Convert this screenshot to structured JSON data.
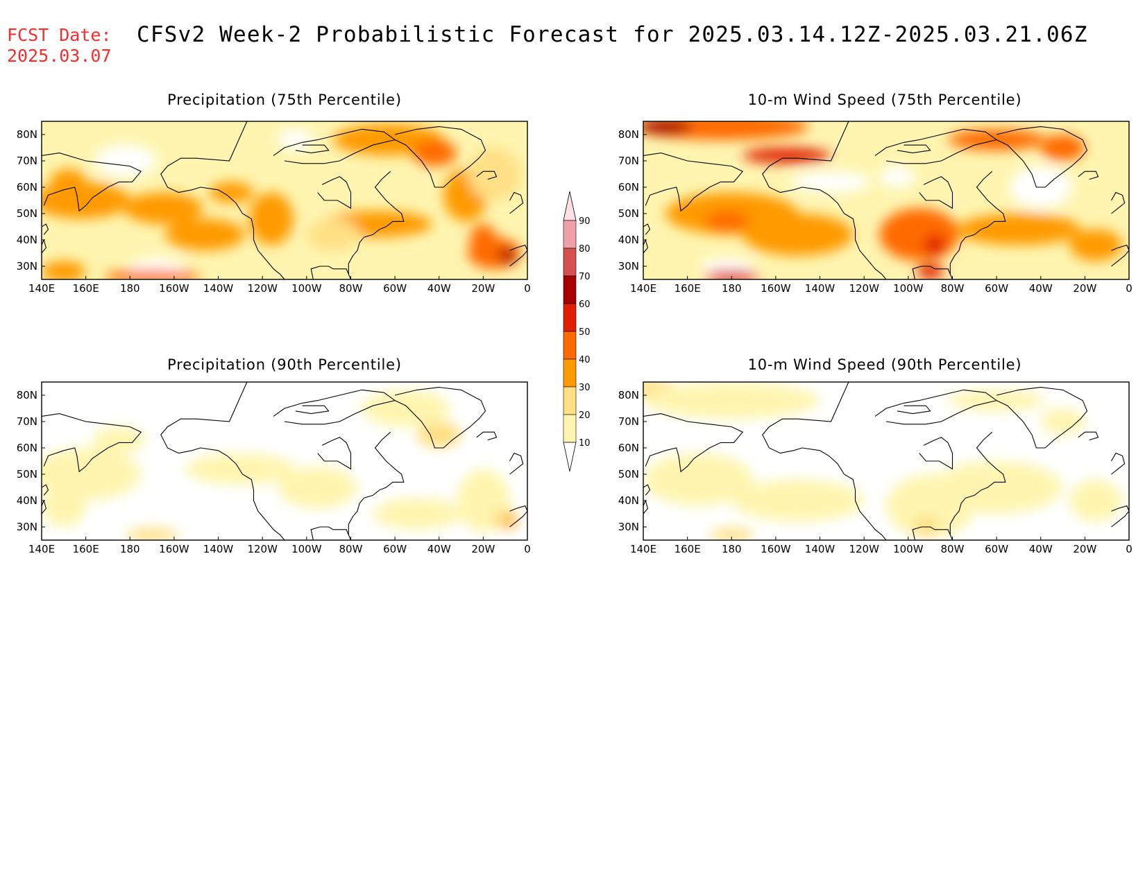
{
  "header": {
    "fcst_label": "FCST Date:",
    "fcst_date": "2025.03.07",
    "title": "CFSv2 Week-2 Probabilistic Forecast for 2025.03.14.12Z-2025.03.21.06Z",
    "fcst_color": "#ff2a2a"
  },
  "axes": {
    "lon_ticks": [
      "140E",
      "160E",
      "180",
      "160W",
      "140W",
      "120W",
      "100W",
      "80W",
      "60W",
      "40W",
      "20W",
      "0"
    ],
    "lat_ticks": [
      "80N",
      "70N",
      "60N",
      "50N",
      "40N",
      "30N"
    ],
    "lon_range": [
      140,
      360
    ],
    "lat_range": [
      25,
      85
    ]
  },
  "colorbar": {
    "levels": [
      "10",
      "20",
      "30",
      "40",
      "50",
      "60",
      "70",
      "80",
      "90"
    ],
    "colors": [
      "#fff5b0",
      "#ffe085",
      "#ff9a00",
      "#ff6a00",
      "#e02000",
      "#a80000",
      "#d65050",
      "#f0a0a8",
      "#fde0e6"
    ]
  },
  "chart_data": [
    {
      "type": "heatmap",
      "title": "Precipitation (75th Percentile)",
      "id": "p75",
      "blobs": [
        {
          "lon": 178,
          "lat": 70,
          "rlon": 14,
          "rlat": 6,
          "v": 5
        },
        {
          "lon": 152,
          "lat": 62,
          "rlon": 8,
          "rlat": 5,
          "v": 34
        },
        {
          "lon": 158,
          "lat": 55,
          "rlon": 22,
          "rlat": 7,
          "v": 36
        },
        {
          "lon": 195,
          "lat": 52,
          "rlon": 18,
          "rlat": 6,
          "v": 34
        },
        {
          "lon": 226,
          "lat": 58,
          "rlon": 10,
          "rlat": 4,
          "v": 36
        },
        {
          "lon": 244,
          "lat": 48,
          "rlon": 10,
          "rlat": 10,
          "v": 36
        },
        {
          "lon": 214,
          "lat": 42,
          "rlon": 18,
          "rlat": 6,
          "v": 33
        },
        {
          "lon": 150,
          "lat": 28,
          "rlon": 10,
          "rlat": 4,
          "v": 33
        },
        {
          "lon": 192,
          "lat": 30,
          "rlon": 12,
          "rlat": 3,
          "v": 5
        },
        {
          "lon": 190,
          "lat": 26,
          "rlon": 22,
          "rlat": 2.5,
          "v": 44
        },
        {
          "lon": 255,
          "lat": 78,
          "rlon": 8,
          "rlat": 4,
          "v": 5
        },
        {
          "lon": 292,
          "lat": 46,
          "rlon": 25,
          "rlat": 5,
          "v": 36
        },
        {
          "lon": 297,
          "lat": 78,
          "rlon": 25,
          "rlat": 6,
          "v": 36
        },
        {
          "lon": 318,
          "lat": 73,
          "rlon": 10,
          "rlat": 5,
          "v": 44
        },
        {
          "lon": 332,
          "lat": 57,
          "rlon": 10,
          "rlat": 10,
          "v": 36
        },
        {
          "lon": 345,
          "lat": 35,
          "rlon": 12,
          "rlat": 6,
          "v": 46
        },
        {
          "lon": 351,
          "lat": 34,
          "rlon": 4,
          "rlat": 3,
          "v": 62
        },
        {
          "lon": 345,
          "lat": 65,
          "rlon": 12,
          "rlat": 10,
          "v": 22
        },
        {
          "lon": 272,
          "lat": 42,
          "rlon": 12,
          "rlat": 6,
          "v": 22
        },
        {
          "lon": 340,
          "lat": 40,
          "rlon": 6,
          "rlat": 6,
          "v": 40
        }
      ]
    },
    {
      "type": "heatmap",
      "title": "10-m Wind Speed (75th Percentile)",
      "id": "w75",
      "blobs": [
        {
          "lon": 175,
          "lat": 83,
          "rlon": 40,
          "rlat": 5,
          "v": 48
        },
        {
          "lon": 150,
          "lat": 83,
          "rlon": 12,
          "rlat": 3,
          "v": 62
        },
        {
          "lon": 205,
          "lat": 72,
          "rlon": 20,
          "rlat": 3,
          "v": 50
        },
        {
          "lon": 300,
          "lat": 78,
          "rlon": 22,
          "rlat": 4,
          "v": 48
        },
        {
          "lon": 330,
          "lat": 75,
          "rlon": 10,
          "rlat": 5,
          "v": 40
        },
        {
          "lon": 180,
          "lat": 50,
          "rlon": 30,
          "rlat": 8,
          "v": 38
        },
        {
          "lon": 178,
          "lat": 47,
          "rlon": 10,
          "rlat": 4,
          "v": 46
        },
        {
          "lon": 210,
          "lat": 42,
          "rlon": 25,
          "rlat": 8,
          "v": 34
        },
        {
          "lon": 178,
          "lat": 30,
          "rlon": 12,
          "rlat": 3,
          "v": 5
        },
        {
          "lon": 180,
          "lat": 26,
          "rlon": 12,
          "rlat": 2.5,
          "v": 56
        },
        {
          "lon": 265,
          "lat": 42,
          "rlon": 18,
          "rlat": 10,
          "v": 40
        },
        {
          "lon": 272,
          "lat": 38,
          "rlon": 5,
          "rlat": 4,
          "v": 50
        },
        {
          "lon": 270,
          "lat": 28,
          "rlon": 6,
          "rlat": 3,
          "v": 55
        },
        {
          "lon": 310,
          "lat": 44,
          "rlon": 28,
          "rlat": 6,
          "v": 36
        },
        {
          "lon": 345,
          "lat": 38,
          "rlon": 12,
          "rlat": 6,
          "v": 36
        },
        {
          "lon": 320,
          "lat": 60,
          "rlon": 14,
          "rlat": 8,
          "v": 5
        },
        {
          "lon": 225,
          "lat": 62,
          "rlon": 18,
          "rlat": 4,
          "v": 5
        },
        {
          "lon": 255,
          "lat": 64,
          "rlon": 8,
          "rlat": 4,
          "v": 5
        }
      ]
    },
    {
      "type": "heatmap",
      "title": "Precipitation (90th Percentile)",
      "id": "p90",
      "blobs": [
        {
          "lon": 160,
          "lat": 50,
          "rlon": 25,
          "rlat": 10,
          "v": 14
        },
        {
          "lon": 150,
          "lat": 38,
          "rlon": 10,
          "rlat": 8,
          "v": 14
        },
        {
          "lon": 175,
          "lat": 63,
          "rlon": 12,
          "rlat": 5,
          "v": 14
        },
        {
          "lon": 230,
          "lat": 52,
          "rlon": 25,
          "rlat": 6,
          "v": 14
        },
        {
          "lon": 265,
          "lat": 45,
          "rlon": 18,
          "rlat": 8,
          "v": 14
        },
        {
          "lon": 190,
          "lat": 27,
          "rlon": 12,
          "rlat": 2.5,
          "v": 22
        },
        {
          "lon": 305,
          "lat": 75,
          "rlon": 20,
          "rlat": 7,
          "v": 14
        },
        {
          "lon": 320,
          "lat": 65,
          "rlon": 10,
          "rlat": 5,
          "v": 22
        },
        {
          "lon": 340,
          "lat": 40,
          "rlon": 12,
          "rlat": 12,
          "v": 14
        },
        {
          "lon": 350,
          "lat": 33,
          "rlon": 6,
          "rlat": 4,
          "v": 26
        },
        {
          "lon": 352,
          "lat": 32,
          "rlon": 3,
          "rlat": 2,
          "v": 34
        },
        {
          "lon": 310,
          "lat": 35,
          "rlon": 20,
          "rlat": 6,
          "v": 13
        }
      ]
    },
    {
      "type": "heatmap",
      "title": "10-m Wind Speed (90th Percentile)",
      "id": "w90",
      "blobs": [
        {
          "lon": 145,
          "lat": 82,
          "rlon": 10,
          "rlat": 4,
          "v": 24
        },
        {
          "lon": 180,
          "lat": 78,
          "rlon": 40,
          "rlat": 7,
          "v": 14
        },
        {
          "lon": 165,
          "lat": 48,
          "rlon": 25,
          "rlat": 10,
          "v": 14
        },
        {
          "lon": 210,
          "lat": 40,
          "rlon": 30,
          "rlat": 8,
          "v": 13
        },
        {
          "lon": 180,
          "lat": 27,
          "rlon": 10,
          "rlat": 2.5,
          "v": 28
        },
        {
          "lon": 270,
          "lat": 38,
          "rlon": 20,
          "rlat": 12,
          "v": 18
        },
        {
          "lon": 268,
          "lat": 30,
          "rlon": 6,
          "rlat": 4,
          "v": 24
        },
        {
          "lon": 300,
          "lat": 45,
          "rlon": 30,
          "rlat": 10,
          "v": 13
        },
        {
          "lon": 345,
          "lat": 40,
          "rlon": 12,
          "rlat": 8,
          "v": 14
        },
        {
          "lon": 300,
          "lat": 78,
          "rlon": 22,
          "rlat": 4,
          "v": 18
        },
        {
          "lon": 330,
          "lat": 70,
          "rlon": 10,
          "rlat": 5,
          "v": 13
        }
      ]
    }
  ]
}
